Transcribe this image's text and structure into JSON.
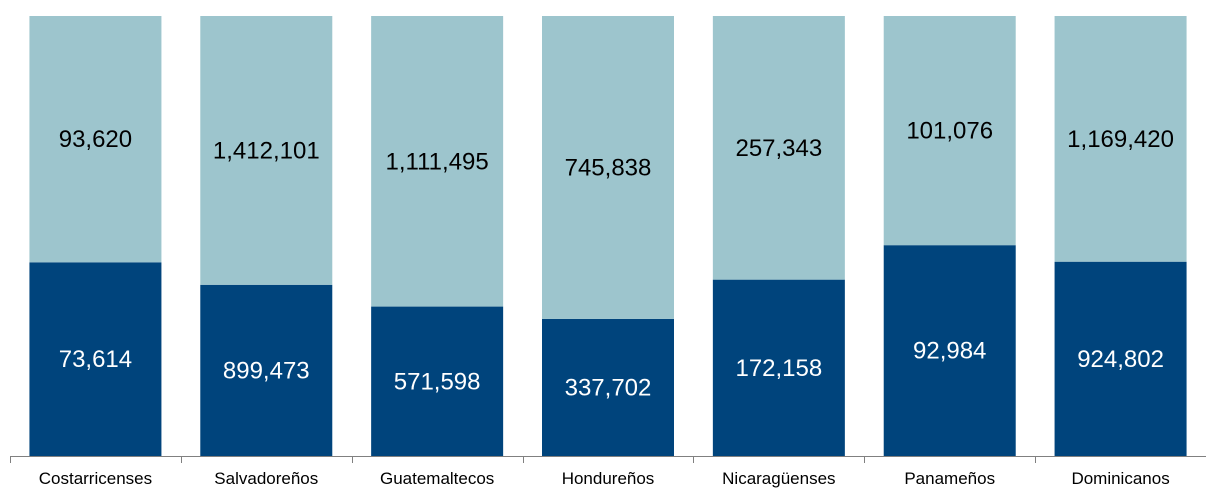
{
  "chart_data": {
    "type": "bar",
    "stacked": true,
    "normalized": true,
    "categories": [
      "Costarricenses",
      "Salvadoreños",
      "Guatemaltecos",
      "Hondureños",
      "Nicaragüenses",
      "Panameños",
      "Dominicanos"
    ],
    "series": [
      {
        "values": [
          73614,
          899473,
          571598,
          337702,
          172158,
          92984,
          924802
        ],
        "color": "#00447C",
        "label_color": "#ffffff"
      },
      {
        "values": [
          93620,
          1412101,
          1111495,
          745838,
          257343,
          101076,
          1169420
        ],
        "color": "#9DC5CD",
        "label_color": "#000000"
      }
    ],
    "value_labels": [
      [
        "73,614",
        "899,473",
        "571,598",
        "337,702",
        "172,158",
        "92,984",
        "924,802"
      ],
      [
        "93,620",
        "1,412,101",
        "1,111,495",
        "745,838",
        "257,343",
        "101,076",
        "1,169,420"
      ]
    ],
    "ylim": [
      0,
      1
    ],
    "grid": false,
    "legend": "none"
  }
}
